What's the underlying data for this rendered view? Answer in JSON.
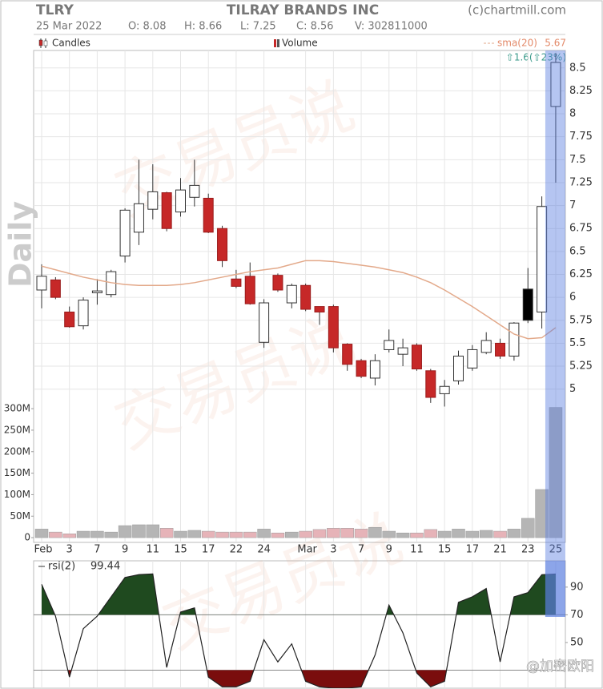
{
  "watermark": "交易员说",
  "credit": "@加密欧阳",
  "chart_data": [
    {
      "type": "candlestick",
      "symbol": "TLRY",
      "title": "TILRAY BRANDS INC",
      "source": "(c)chartmill.com",
      "date": "25 Mar 2022",
      "quote": [
        "O: 8.08",
        "H: 8.66",
        "L: 7.25",
        "C: 8.56",
        "V: 302811000"
      ],
      "change": "⇧1.6(⇧23%)",
      "period": "Daily",
      "categories": [
        "Feb",
        null,
        "3",
        null,
        "7",
        null,
        "9",
        null,
        "11",
        null,
        "15",
        null,
        "17",
        null,
        "22",
        null,
        "24",
        null,
        null,
        "Mar",
        null,
        "3",
        null,
        "7",
        null,
        "9",
        null,
        "11",
        null,
        "15",
        null,
        "17",
        null,
        "21",
        null,
        "23",
        null,
        "25"
      ],
      "series": [
        {
          "name": "Candles",
          "open": [
            6.08,
            6.19,
            5.84,
            5.69,
            6.05,
            6.03,
            6.45,
            6.71,
            6.96,
            7.14,
            6.93,
            7.09,
            7.08,
            6.75,
            6.2,
            6.23,
            5.51,
            6.24,
            5.94,
            6.13,
            5.9,
            5.9,
            5.49,
            5.31,
            5.12,
            5.43,
            5.38,
            5.48,
            5.2,
            4.95,
            5.09,
            5.23,
            5.4,
            5.5,
            5.36,
            5.75,
            5.84,
            8.08
          ],
          "high": [
            6.36,
            6.22,
            5.9,
            6.0,
            6.2,
            6.3,
            6.97,
            7.5,
            7.45,
            7.15,
            7.3,
            7.5,
            7.13,
            6.78,
            6.3,
            6.38,
            5.98,
            6.26,
            6.15,
            6.15,
            5.9,
            5.92,
            5.5,
            5.33,
            5.38,
            5.65,
            5.55,
            5.5,
            5.22,
            5.1,
            5.42,
            5.48,
            5.62,
            5.55,
            5.73,
            6.32,
            7.1,
            8.66
          ],
          "low": [
            5.88,
            5.98,
            5.67,
            5.65,
            5.92,
            6.0,
            6.38,
            6.57,
            6.85,
            6.72,
            6.88,
            6.99,
            6.7,
            6.33,
            6.1,
            5.92,
            5.45,
            6.06,
            5.88,
            5.85,
            5.7,
            5.4,
            5.2,
            5.12,
            5.04,
            5.4,
            5.25,
            5.2,
            4.85,
            4.81,
            5.05,
            5.2,
            5.38,
            5.33,
            5.31,
            5.72,
            5.66,
            7.25
          ],
          "close": [
            6.23,
            6.0,
            5.68,
            5.97,
            6.07,
            6.28,
            6.95,
            7.02,
            7.15,
            6.75,
            7.17,
            7.22,
            6.71,
            6.4,
            6.12,
            5.93,
            5.94,
            6.08,
            6.13,
            5.87,
            5.84,
            5.45,
            5.27,
            5.14,
            5.31,
            5.53,
            5.45,
            5.22,
            4.91,
            5.03,
            5.36,
            5.43,
            5.53,
            5.36,
            5.72,
            6.09,
            6.99,
            8.56
          ],
          "colors": [
            "#ffffff",
            "#c62828",
            "#c62828",
            "#ffffff",
            "#ffffff",
            "#ffffff",
            "#ffffff",
            "#ffffff",
            "#ffffff",
            "#c62828",
            "#ffffff",
            "#ffffff",
            "#c62828",
            "#c62828",
            "#c62828",
            "#c62828",
            "#ffffff",
            "#c62828",
            "#ffffff",
            "#c62828",
            "#c62828",
            "#c62828",
            "#c62828",
            "#c62828",
            "#ffffff",
            "#ffffff",
            "#ffffff",
            "#c62828",
            "#c62828",
            "#ffffff",
            "#ffffff",
            "#ffffff",
            "#ffffff",
            "#c62828",
            "#ffffff",
            "#000000",
            "#ffffff",
            "#ffffff"
          ]
        },
        {
          "name": "sma(20)",
          "type": "line",
          "color": "#e3a98a",
          "values": [
            6.34,
            6.3,
            6.26,
            6.22,
            6.19,
            6.16,
            6.14,
            6.13,
            6.13,
            6.13,
            6.14,
            6.16,
            6.19,
            6.22,
            6.25,
            6.28,
            6.3,
            6.32,
            6.36,
            6.4,
            6.4,
            6.39,
            6.37,
            6.35,
            6.33,
            6.3,
            6.27,
            6.22,
            6.16,
            6.08,
            5.99,
            5.9,
            5.8,
            5.7,
            5.6,
            5.55,
            5.56,
            5.67
          ]
        }
      ],
      "ylim": [
        3.33,
        8.69
      ],
      "yticks": [
        5,
        5.25,
        5.5,
        5.75,
        6,
        6.25,
        6.5,
        6.75,
        7,
        7.25,
        7.5,
        7.75,
        8,
        8.25,
        8.5
      ],
      "grid": true,
      "highlight_color": "#5b7fe0"
    },
    {
      "type": "bar",
      "series": [
        {
          "name": "Volume",
          "up_color": "#b5b5b5",
          "down_color": "#e6b3b8",
          "values": [
            20000000,
            13000000,
            9000000,
            15000000,
            15000000,
            13000000,
            28000000,
            30000000,
            30000000,
            22000000,
            15000000,
            17000000,
            15000000,
            13000000,
            13000000,
            13000000,
            20000000,
            11000000,
            13000000,
            15000000,
            19000000,
            22000000,
            22000000,
            20000000,
            24000000,
            15000000,
            11000000,
            11000000,
            19000000,
            15000000,
            20000000,
            15000000,
            17000000,
            15000000,
            20000000,
            45000000,
            112000000,
            302811000
          ]
        }
      ],
      "ylim": [
        -11000000,
        1133000000
      ],
      "yticks": [
        0,
        {
          "value": 50000000,
          "label": "50M"
        },
        {
          "value": 100000000,
          "label": "100M"
        },
        {
          "value": 150000000,
          "label": "150M"
        },
        {
          "value": 200000000,
          "label": "200M"
        },
        {
          "value": 250000000,
          "label": "250M"
        },
        {
          "value": 300000000,
          "label": "300M"
        }
      ]
    },
    {
      "type": "line",
      "series": [
        {
          "name": "rsi(2)",
          "color": "#222222",
          "values": [
            92,
            69,
            25,
            60,
            69,
            83,
            97,
            99,
            99.5,
            32,
            72,
            75,
            25,
            18,
            18,
            22,
            52,
            36,
            49,
            22,
            18,
            17,
            17,
            18,
            41,
            77,
            57,
            28,
            18,
            22,
            79,
            83,
            89,
            36,
            83,
            86,
            99,
            99.44
          ]
        }
      ],
      "ylim": [
        17,
        109
      ],
      "yticks": [
        50,
        70,
        90
      ],
      "levels": [
        30,
        70
      ],
      "above_color": "#1f4a1f",
      "below_color": "#7a0d0d"
    }
  ]
}
